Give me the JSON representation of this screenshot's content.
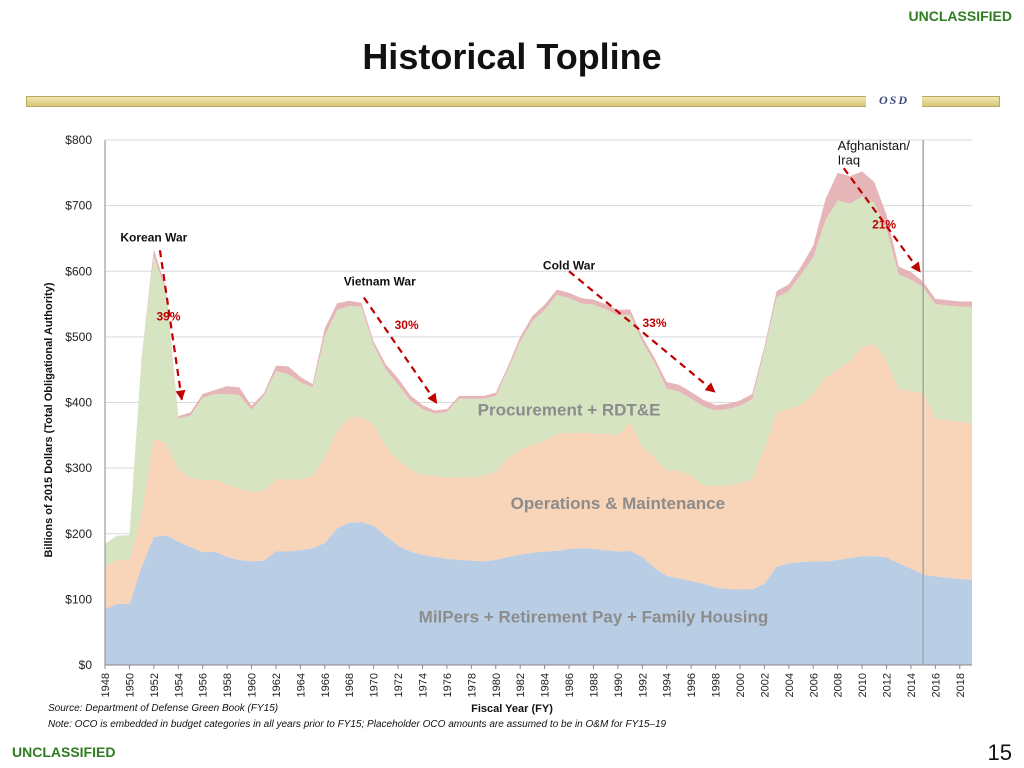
{
  "header": {
    "classification": "UNCLASSIFIED",
    "title": "Historical Topline",
    "org_mark": "OSD"
  },
  "footer": {
    "classification": "UNCLASSIFIED",
    "page_number": "15",
    "source": "Source:  Department of Defense Green Book (FY15)",
    "note": "Note:  OCO is embedded in budget categories in all years prior to FY15; Placeholder OCO amounts are assumed to be in O&M for FY15–19"
  },
  "colors": {
    "milpers": "#b9cde4",
    "om": "#f8d4b8",
    "proc": "#d7e4c2",
    "oco": "#e6b5b8",
    "arrow": "#c00000",
    "classification": "#2e7d1e"
  },
  "chart_data": {
    "type": "area",
    "xlabel": "Fiscal Year (FY)",
    "ylabel": "Billions of 2015 Dollars (Total Obligational Authority)",
    "ylim": [
      0,
      800
    ],
    "yticks": [
      "$0",
      "$100",
      "$200",
      "$300",
      "$400",
      "$500",
      "$600",
      "$700",
      "$800"
    ],
    "ytick_values": [
      0,
      100,
      200,
      300,
      400,
      500,
      600,
      700,
      800
    ],
    "grid": true,
    "x": [
      1948,
      1949,
      1950,
      1951,
      1952,
      1953,
      1954,
      1955,
      1956,
      1957,
      1958,
      1959,
      1960,
      1961,
      1962,
      1963,
      1964,
      1965,
      1966,
      1967,
      1968,
      1969,
      1970,
      1971,
      1972,
      1973,
      1974,
      1975,
      1976,
      1977,
      1978,
      1979,
      1980,
      1981,
      1982,
      1983,
      1984,
      1985,
      1986,
      1987,
      1988,
      1989,
      1990,
      1991,
      1992,
      1993,
      1994,
      1995,
      1996,
      1997,
      1998,
      1999,
      2000,
      2001,
      2002,
      2003,
      2004,
      2005,
      2006,
      2007,
      2008,
      2009,
      2010,
      2011,
      2012,
      2013,
      2014,
      2015,
      2016,
      2017,
      2018,
      2019
    ],
    "xtick_labels": [
      "1948",
      "1950",
      "1952",
      "1954",
      "1956",
      "1958",
      "1960",
      "1962",
      "1964",
      "1966",
      "1968",
      "1970",
      "1972",
      "1974",
      "1976",
      "1978",
      "1980",
      "1982",
      "1984",
      "1986",
      "1988",
      "1990",
      "1992",
      "1994",
      "1996",
      "1998",
      "2000",
      "2002",
      "2004",
      "2006",
      "2008",
      "2010",
      "2012",
      "2014",
      "2016",
      "2018"
    ],
    "series": [
      {
        "name": "MilPers + Retirement Pay + Family Housing",
        "values": [
          85,
          93,
          93,
          150,
          195,
          198,
          188,
          180,
          172,
          173,
          165,
          160,
          158,
          159,
          173,
          173,
          175,
          178,
          186,
          208,
          217,
          218,
          212,
          197,
          182,
          173,
          168,
          165,
          162,
          160,
          159,
          158,
          160,
          165,
          168,
          171,
          173,
          174,
          177,
          178,
          177,
          175,
          173,
          174,
          165,
          148,
          136,
          132,
          128,
          124,
          118,
          116,
          115,
          115,
          124,
          150,
          155,
          157,
          158,
          158,
          160,
          163,
          166,
          166,
          164,
          155,
          147,
          138,
          135,
          133,
          131,
          130
        ]
      },
      {
        "name": "Operations & Maintenance",
        "values": [
          65,
          68,
          67,
          80,
          150,
          140,
          110,
          105,
          110,
          110,
          110,
          108,
          106,
          106,
          110,
          110,
          108,
          110,
          130,
          148,
          160,
          160,
          155,
          135,
          130,
          125,
          122,
          123,
          124,
          126,
          127,
          130,
          135,
          150,
          160,
          165,
          168,
          178,
          177,
          176,
          176,
          177,
          178,
          195,
          168,
          168,
          160,
          165,
          160,
          150,
          155,
          158,
          162,
          168,
          205,
          235,
          235,
          240,
          255,
          280,
          290,
          300,
          320,
          323,
          300,
          265,
          270,
          278,
          240,
          240,
          240,
          238
        ]
      },
      {
        "name": "Procurement + RDT&E",
        "values": [
          35,
          36,
          38,
          240,
          278,
          230,
          78,
          95,
          125,
          130,
          138,
          143,
          125,
          145,
          165,
          160,
          148,
          135,
          185,
          185,
          170,
          168,
          120,
          118,
          115,
          105,
          100,
          95,
          100,
          120,
          120,
          118,
          115,
          135,
          165,
          188,
          200,
          212,
          205,
          197,
          196,
          190,
          182,
          165,
          160,
          145,
          125,
          120,
          118,
          120,
          115,
          116,
          118,
          122,
          150,
          175,
          180,
          198,
          208,
          240,
          258,
          240,
          228,
          215,
          200,
          175,
          170,
          160,
          175,
          175,
          175,
          178
        ]
      },
      {
        "name": "OCO",
        "values": [
          0,
          0,
          0,
          0,
          10,
          6,
          3,
          5,
          6,
          6,
          12,
          12,
          6,
          4,
          8,
          12,
          8,
          5,
          12,
          10,
          8,
          6,
          6,
          8,
          10,
          8,
          6,
          5,
          4,
          4,
          4,
          4,
          5,
          5,
          7,
          8,
          8,
          8,
          8,
          8,
          8,
          8,
          8,
          8,
          7,
          7,
          10,
          10,
          10,
          10,
          8,
          8,
          8,
          8,
          6,
          10,
          10,
          12,
          18,
          32,
          42,
          42,
          38,
          32,
          22,
          12,
          12,
          8,
          8,
          8,
          8,
          8
        ]
      }
    ],
    "area_labels": [
      {
        "series": "Procurement + RDT&E",
        "text": "Procurement + RDT&E",
        "x": 1986,
        "y": 380
      },
      {
        "series": "Operations & Maintenance",
        "text": "Operations & Maintenance",
        "x": 1990,
        "y": 238
      },
      {
        "series": "MilPers + Retirement Pay + Family Housing",
        "text": "MilPers + Retirement Pay + Family Housing",
        "x": 1988,
        "y": 65
      }
    ],
    "annotations": [
      {
        "text": "Korean War",
        "x": 1952,
        "y": 645
      },
      {
        "text": "Vietnam War",
        "x": 1970.5,
        "y": 578
      },
      {
        "text": "Cold War",
        "x": 1986,
        "y": 603
      },
      {
        "text": "Afghanistan/",
        "x": 2008,
        "y": 785
      },
      {
        "text": "Iraq",
        "x": 2008,
        "y": 763
      }
    ],
    "arrows": [
      {
        "label": "39%",
        "from": [
          1952.5,
          632
        ],
        "to": [
          1954.3,
          403
        ],
        "label_x": 1953.2,
        "label_y": 525
      },
      {
        "label": "30%",
        "from": [
          1969.2,
          560
        ],
        "to": [
          1975.2,
          398
        ],
        "label_x": 1972.7,
        "label_y": 512
      },
      {
        "label": "33%",
        "from": [
          1986,
          600
        ],
        "to": [
          1998,
          415
        ],
        "label_x": 1993,
        "label_y": 515
      },
      {
        "label": "21%",
        "from": [
          2008.5,
          757
        ],
        "to": [
          2014.8,
          598
        ],
        "label_x": 2011.8,
        "label_y": 665
      }
    ],
    "vline_x": 2015
  }
}
